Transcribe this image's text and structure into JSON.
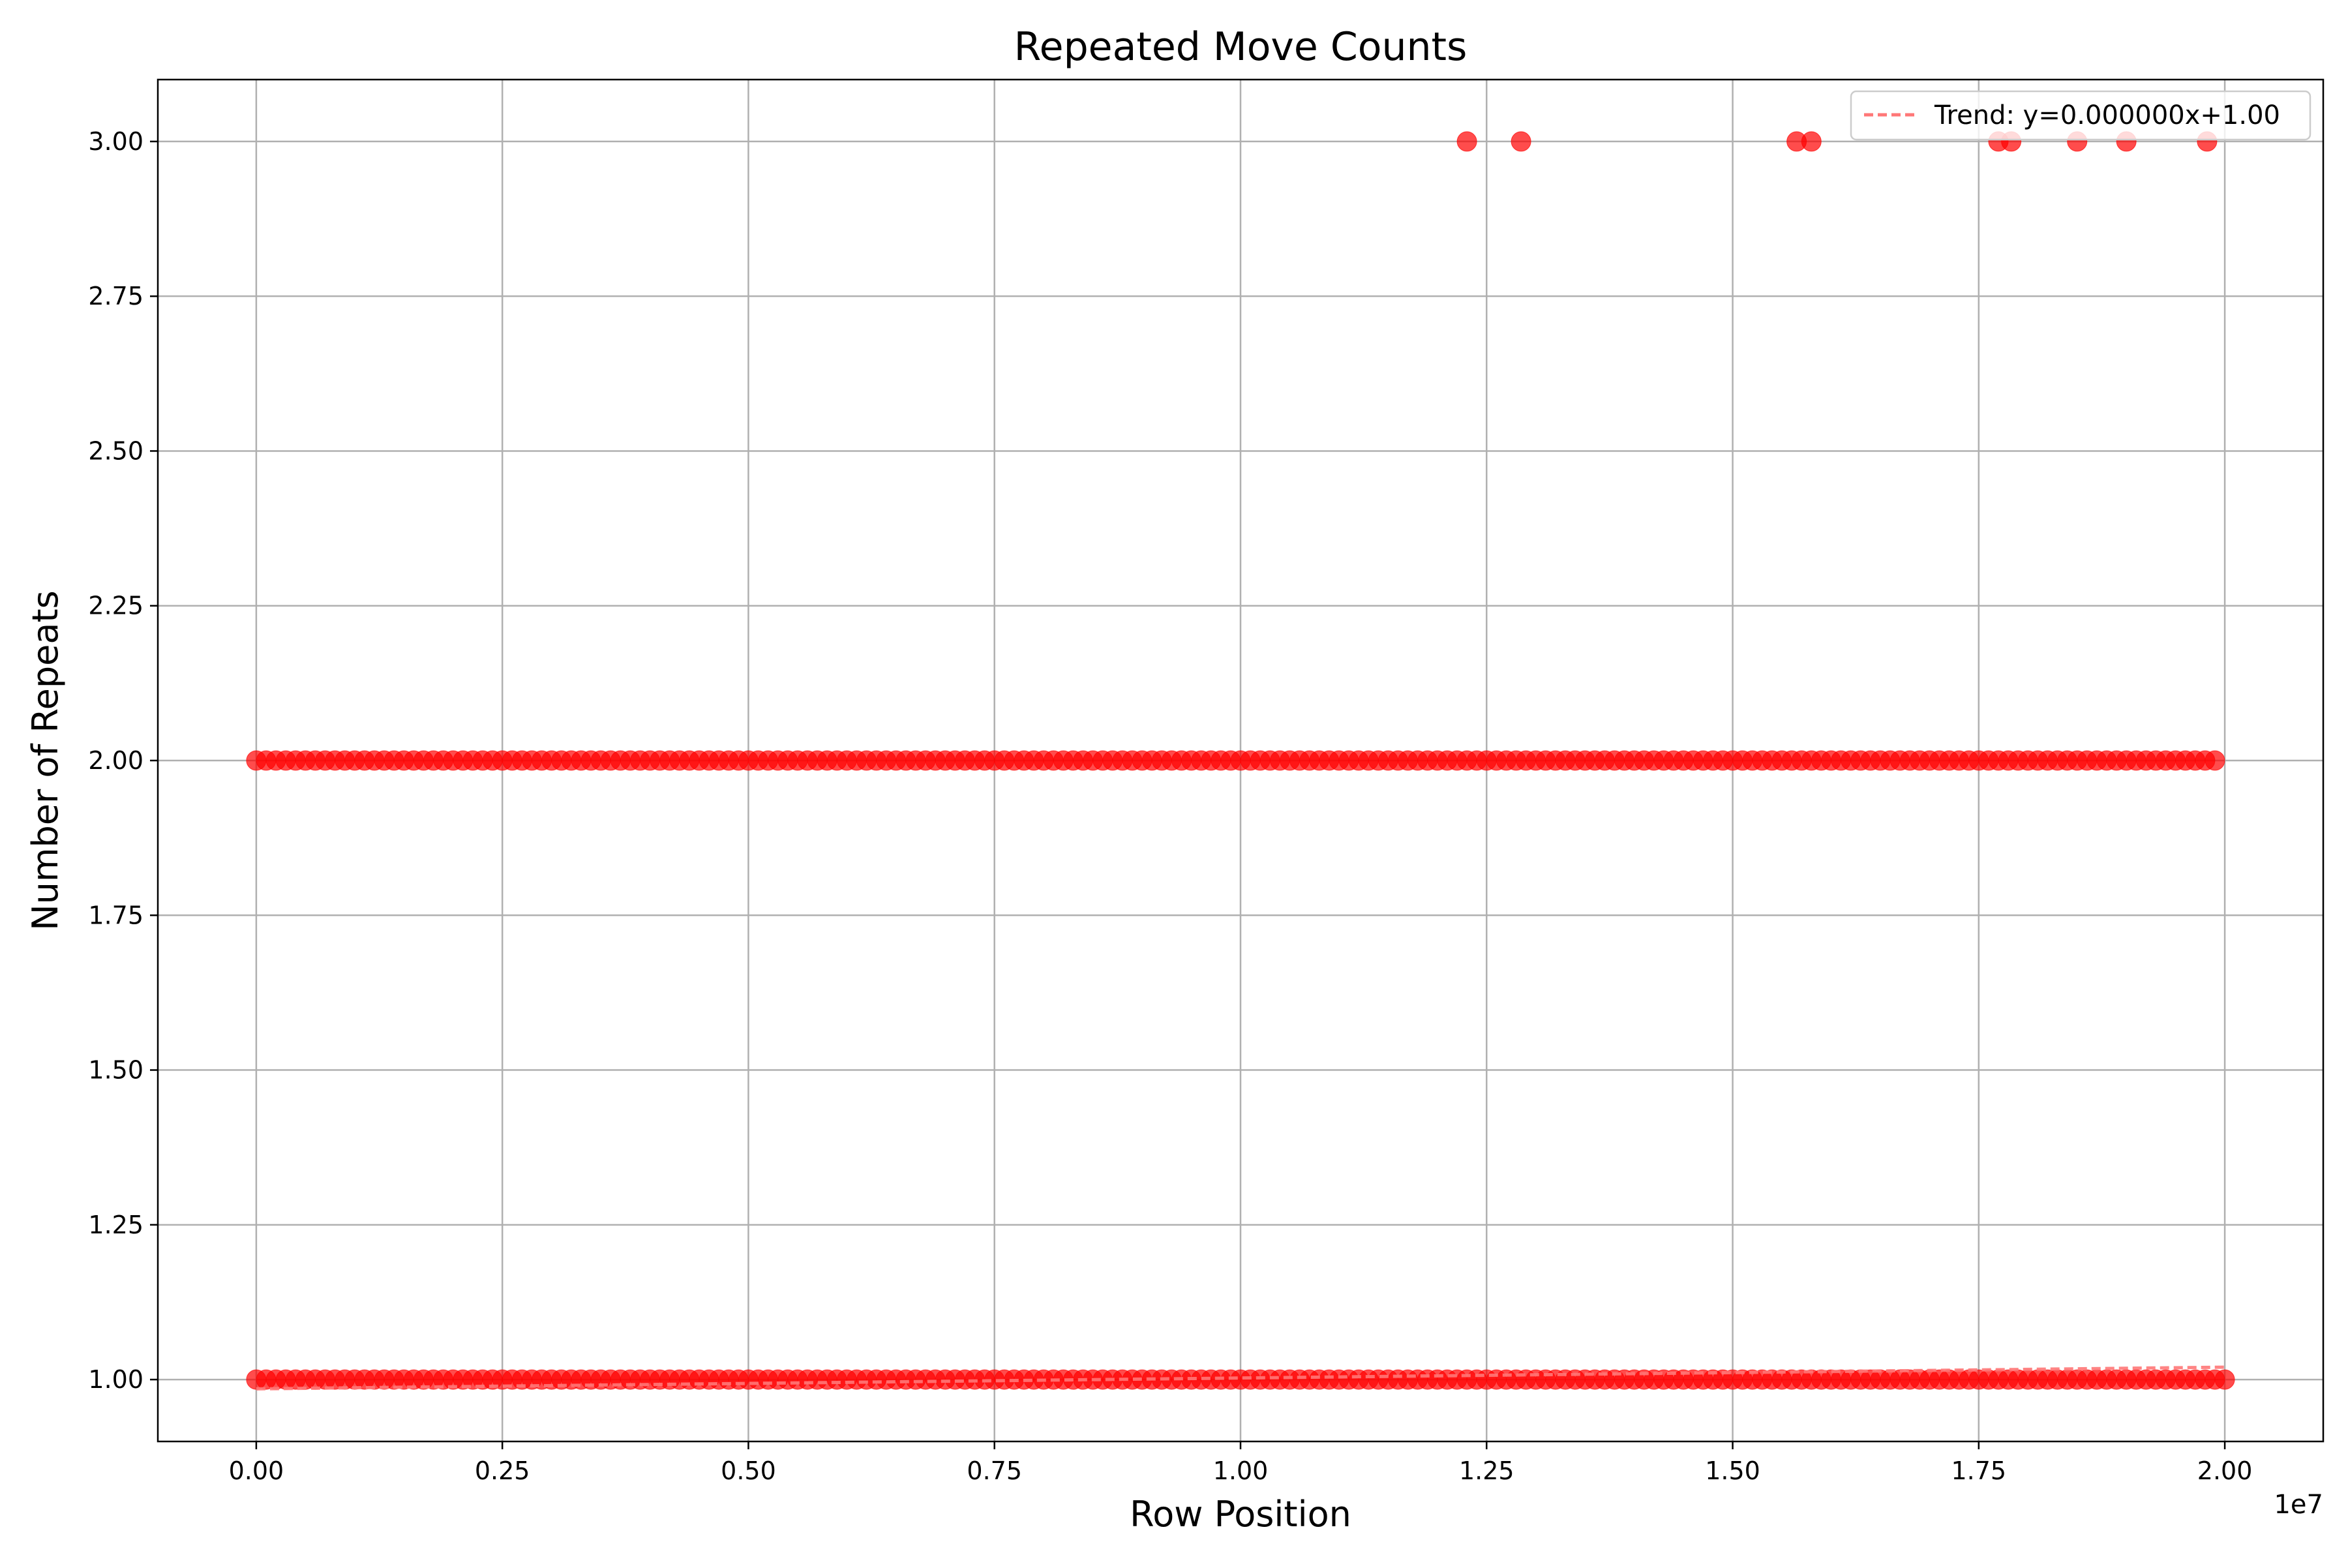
{
  "chart_data": {
    "type": "scatter",
    "title": "Repeated Move Counts",
    "xlabel": "Row Position",
    "ylabel": "Number of Repeats",
    "x_offset_label": "1e7",
    "xlim": [
      -1000000,
      21000000
    ],
    "ylim": [
      0.9,
      3.1
    ],
    "x_ticks": [
      0,
      2500000,
      5000000,
      7500000,
      10000000,
      12500000,
      15000000,
      17500000,
      20000000
    ],
    "x_tick_labels": [
      "0.00",
      "0.25",
      "0.50",
      "0.75",
      "1.00",
      "1.25",
      "1.50",
      "1.75",
      "2.00"
    ],
    "y_ticks": [
      1.0,
      1.25,
      1.5,
      1.75,
      2.0,
      2.25,
      2.5,
      2.75,
      3.0
    ],
    "y_tick_labels": [
      "1.00",
      "1.25",
      "1.50",
      "1.75",
      "2.00",
      "2.25",
      "2.50",
      "2.75",
      "3.00"
    ],
    "grid": true,
    "legend_position": "top-right",
    "point_color": "#ff0000",
    "trend_color": "#ff7777",
    "series": [
      {
        "name": "",
        "kind": "points",
        "dense_rows": [
          {
            "y": 1,
            "x_start": 0,
            "x_end": 20000000,
            "x_step": 100000
          },
          {
            "y": 2,
            "x_start": 0,
            "x_end": 19900000,
            "x_step": 100000
          }
        ],
        "points": [
          {
            "x": 12300000,
            "y": 3
          },
          {
            "x": 12850000,
            "y": 3
          },
          {
            "x": 15650000,
            "y": 3
          },
          {
            "x": 15800000,
            "y": 3
          },
          {
            "x": 17700000,
            "y": 3
          },
          {
            "x": 17830000,
            "y": 3
          },
          {
            "x": 18500000,
            "y": 3
          },
          {
            "x": 19000000,
            "y": 3
          },
          {
            "x": 19820000,
            "y": 3
          }
        ]
      },
      {
        "name": "Trend: y=0.000000x+1.00",
        "kind": "trend-line",
        "x": [
          0,
          20000000
        ],
        "y": [
          0.985,
          1.02
        ]
      }
    ]
  }
}
